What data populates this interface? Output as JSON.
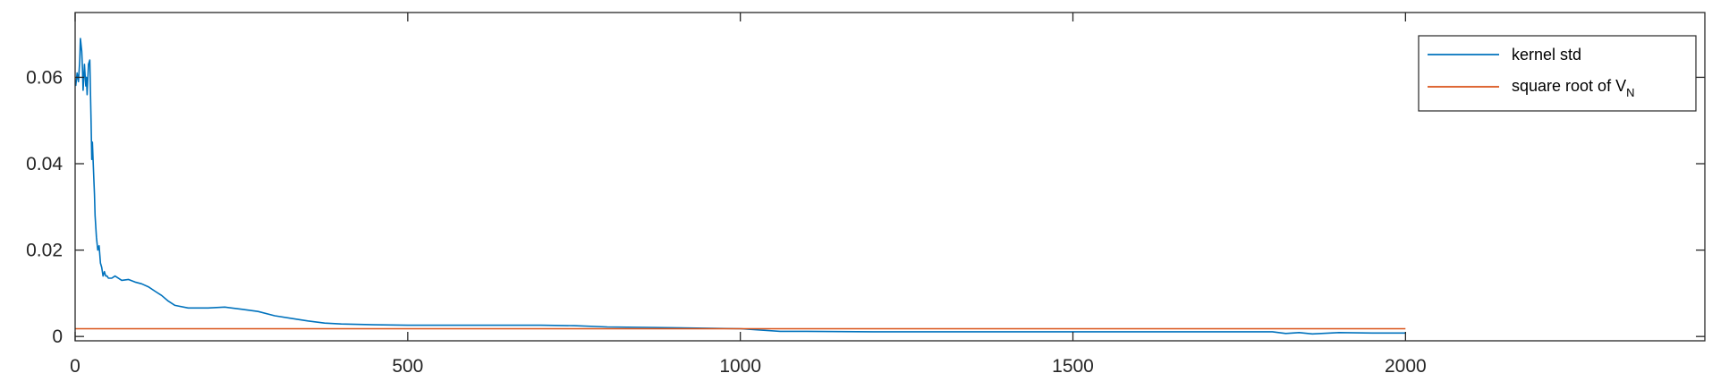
{
  "chart_data": {
    "type": "line",
    "title": "",
    "xlabel": "",
    "ylabel": "",
    "xlim": [
      0,
      2450
    ],
    "ylim": [
      -0.001,
      0.075
    ],
    "grid": false,
    "legend_position": "top-right",
    "x_ticks": [
      {
        "value": 0,
        "label": "0"
      },
      {
        "value": 500,
        "label": "500"
      },
      {
        "value": 1000,
        "label": "1000"
      },
      {
        "value": 1500,
        "label": "1500"
      },
      {
        "value": 2000,
        "label": "2000"
      }
    ],
    "y_ticks": [
      {
        "value": 0,
        "label": "0"
      },
      {
        "value": 0.02,
        "label": "0.02"
      },
      {
        "value": 0.04,
        "label": "0.04"
      },
      {
        "value": 0.06,
        "label": "0.06"
      }
    ],
    "series": [
      {
        "name": "kernel std",
        "color": "#0072bd",
        "x": [
          1,
          3,
          5,
          7,
          8,
          10,
          11,
          12,
          14,
          16,
          17,
          18,
          20,
          22,
          24,
          25,
          26,
          28,
          29,
          30,
          32,
          34,
          36,
          38,
          40,
          42,
          44,
          46,
          48,
          50,
          55,
          60,
          70,
          80,
          90,
          100,
          110,
          120,
          130,
          140,
          150,
          170,
          200,
          225,
          250,
          275,
          300,
          325,
          350,
          375,
          400,
          450,
          500,
          550,
          600,
          650,
          700,
          750,
          800,
          860,
          1000,
          1060,
          1100,
          1200,
          1300,
          1400,
          1500,
          1600,
          1700,
          1800,
          1820,
          1840,
          1860,
          1900,
          1950,
          2000
        ],
        "y": [
          0.058,
          0.061,
          0.059,
          0.064,
          0.069,
          0.066,
          0.062,
          0.057,
          0.063,
          0.058,
          0.06,
          0.056,
          0.063,
          0.064,
          0.05,
          0.041,
          0.045,
          0.037,
          0.033,
          0.028,
          0.023,
          0.02,
          0.021,
          0.017,
          0.016,
          0.014,
          0.015,
          0.014,
          0.014,
          0.0135,
          0.0135,
          0.014,
          0.013,
          0.0132,
          0.0126,
          0.0122,
          0.0115,
          0.0105,
          0.0095,
          0.0082,
          0.0072,
          0.0066,
          0.0066,
          0.0068,
          0.0063,
          0.0058,
          0.0048,
          0.0042,
          0.0036,
          0.0031,
          0.0029,
          0.0027,
          0.0026,
          0.0026,
          0.0026,
          0.0026,
          0.0026,
          0.0025,
          0.0022,
          0.0021,
          0.0018,
          0.0012,
          0.0012,
          0.0011,
          0.0011,
          0.0011,
          0.0011,
          0.0011,
          0.0011,
          0.0011,
          0.0007,
          0.0009,
          0.0006,
          0.0009,
          0.0008,
          0.0008
        ]
      },
      {
        "name": "square root of V_N",
        "color": "#d95319",
        "x": [
          0,
          2000
        ],
        "y": [
          0.0018,
          0.0018
        ]
      }
    ],
    "legend": {
      "entries": [
        {
          "label": "kernel std",
          "color": "#0072bd"
        },
        {
          "label_main": "square root of V",
          "label_sub": "N",
          "color": "#d95319"
        }
      ]
    }
  }
}
